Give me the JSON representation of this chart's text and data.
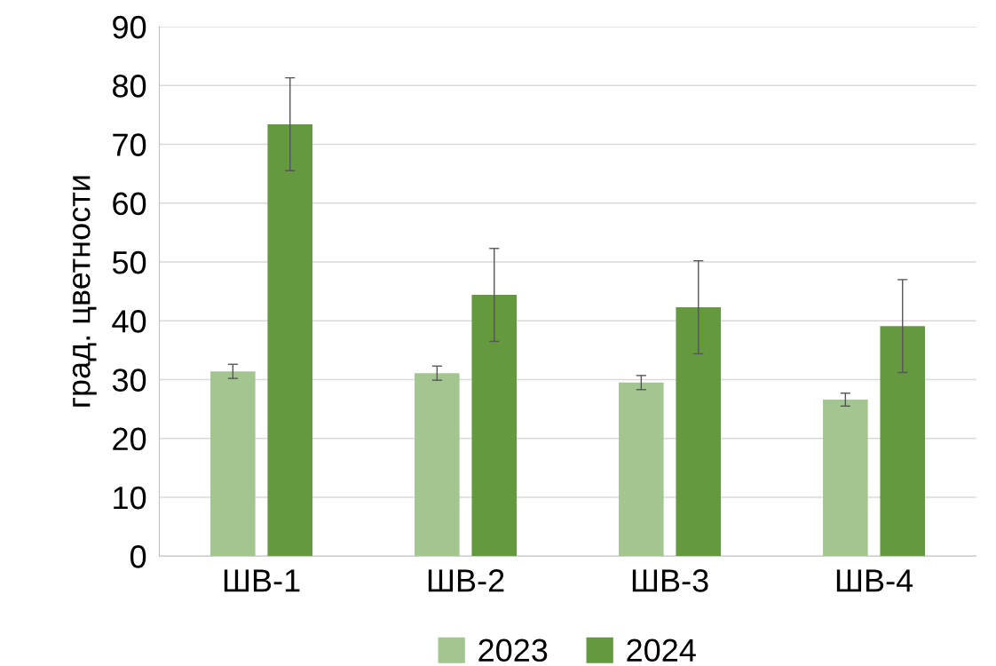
{
  "chart_data": {
    "type": "bar",
    "ylabel": "град. цветности",
    "categories": [
      "ШВ-1",
      "ШВ-2",
      "ШВ-3",
      "ШВ-4"
    ],
    "series": [
      {
        "name": "2023",
        "color": "#a3c690",
        "values": [
          31.4,
          31.1,
          29.5,
          26.6
        ],
        "errors": [
          1.2,
          1.2,
          1.2,
          1.1
        ]
      },
      {
        "name": "2024",
        "color": "#64993f",
        "values": [
          73.4,
          44.4,
          42.3,
          39.1
        ],
        "errors": [
          7.9,
          7.9,
          7.9,
          7.9
        ]
      }
    ],
    "ylim": [
      0,
      90
    ],
    "yticks": [
      0,
      10,
      20,
      30,
      40,
      50,
      60,
      70,
      80,
      90
    ],
    "grid": "y",
    "legend": "bottom"
  }
}
